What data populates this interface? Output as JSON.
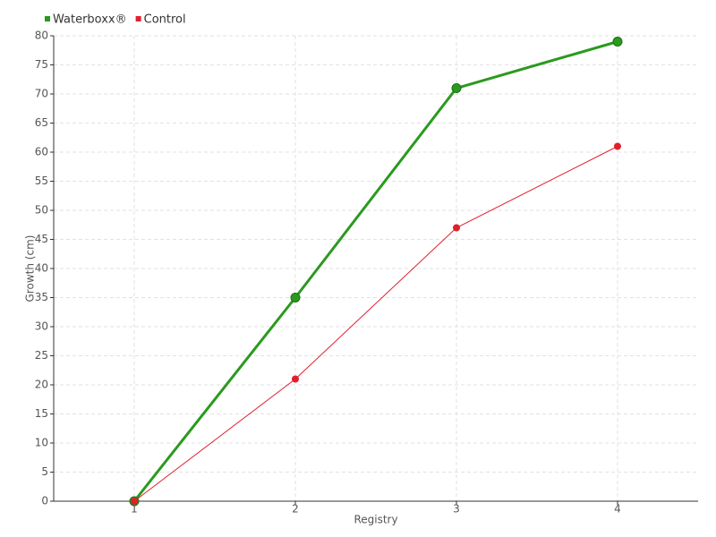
{
  "chart_data": {
    "type": "line",
    "x_label": "Registry",
    "y_label": "Growth (cm)",
    "x": [
      1,
      2,
      3,
      4
    ],
    "series": [
      {
        "name": "Waterboxx®",
        "color": "#2a9a1e",
        "values": [
          0,
          35,
          71,
          79
        ]
      },
      {
        "name": "Control",
        "color": "#e0202e",
        "values": [
          0,
          21,
          47,
          61
        ]
      }
    ],
    "xlim": [
      0.5,
      4.5
    ],
    "xticks": [
      1,
      2,
      3,
      4
    ],
    "ylim": [
      0,
      80
    ],
    "yticks": [
      0,
      5,
      10,
      15,
      20,
      25,
      30,
      35,
      40,
      45,
      50,
      55,
      60,
      65,
      70,
      75,
      80
    ],
    "grid": true,
    "legend": "top-left"
  }
}
